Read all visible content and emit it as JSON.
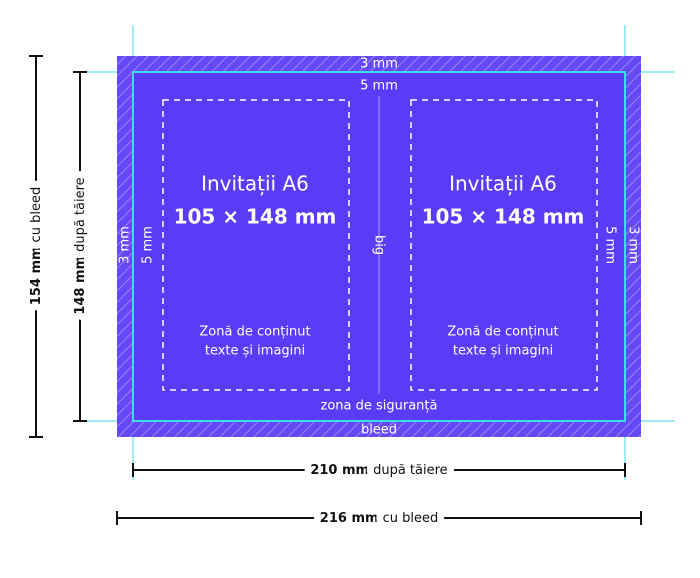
{
  "labels": {
    "bleed_top": "3 mm",
    "safety_top": "5 mm",
    "bleed_left": "3 mm",
    "safety_left": "5 mm",
    "safety_right": "5 mm",
    "bleed_right": "3 mm",
    "fold": "big",
    "safety_zone": "zona de siguranță",
    "bleed": "bleed"
  },
  "panels": [
    {
      "title": "Invitații A6",
      "size": "105 × 148 mm",
      "content": [
        "Zonă de conținut",
        "texte și imagini"
      ]
    },
    {
      "title": "Invitații A6",
      "size": "105 × 148 mm",
      "content": [
        "Zonă de conținut",
        "texte și imagini"
      ]
    }
  ],
  "dimensions": [
    {
      "value": "154 mm",
      "label": "cu bleed"
    },
    {
      "value": "148 mm",
      "label": "după tăiere"
    },
    {
      "value": "210 mm",
      "label": "după tăiere"
    },
    {
      "value": "216 mm",
      "label": "cu bleed"
    }
  ]
}
